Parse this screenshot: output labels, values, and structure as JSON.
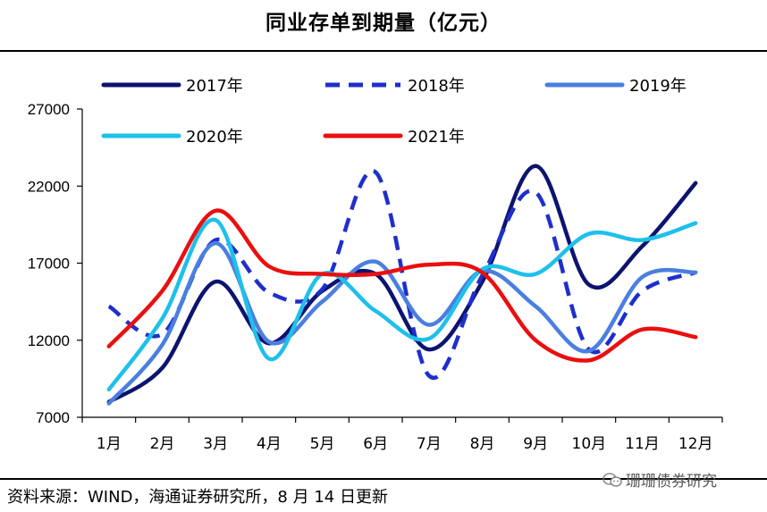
{
  "title": "同业存单到期量（亿元）",
  "source": "资料来源：WIND，海通证券研究所，8 月 14 日更新",
  "watermark": "珊珊债券研究",
  "chart_data": {
    "type": "line",
    "title": "同业存单到期量（亿元）",
    "xlabel": "",
    "ylabel": "",
    "categories": [
      "1月",
      "2月",
      "3月",
      "4月",
      "5月",
      "6月",
      "7月",
      "8月",
      "9月",
      "10月",
      "11月",
      "12月"
    ],
    "yticks": [
      7000,
      12000,
      17000,
      22000,
      27000
    ],
    "ylim": [
      7000,
      27000
    ],
    "series": [
      {
        "name": "2017年",
        "color": "#0c1470",
        "dash": "solid",
        "values": [
          8000,
          10200,
          15800,
          11800,
          15200,
          16300,
          11400,
          15800,
          23300,
          15600,
          18100,
          22200
        ]
      },
      {
        "name": "2018年",
        "color": "#1f2fcc",
        "dash": "dashed",
        "values": [
          14200,
          12400,
          18500,
          15100,
          15300,
          22900,
          9700,
          16200,
          21600,
          11400,
          15200,
          16400
        ]
      },
      {
        "name": "2019年",
        "color": "#4a7fe0",
        "dash": "solid",
        "values": [
          7900,
          11700,
          18300,
          11900,
          14500,
          17100,
          13000,
          16500,
          14200,
          11300,
          16100,
          16400
        ]
      },
      {
        "name": "2020年",
        "color": "#1ec0ea",
        "dash": "solid",
        "values": [
          8800,
          13400,
          19800,
          10800,
          16300,
          13900,
          12100,
          16600,
          16300,
          18900,
          18500,
          19600
        ]
      },
      {
        "name": "2021年",
        "color": "#ea0f10",
        "dash": "solid",
        "values": [
          11600,
          15200,
          20400,
          16800,
          16300,
          16300,
          16900,
          16400,
          12000,
          10700,
          12700,
          12200
        ]
      }
    ]
  }
}
